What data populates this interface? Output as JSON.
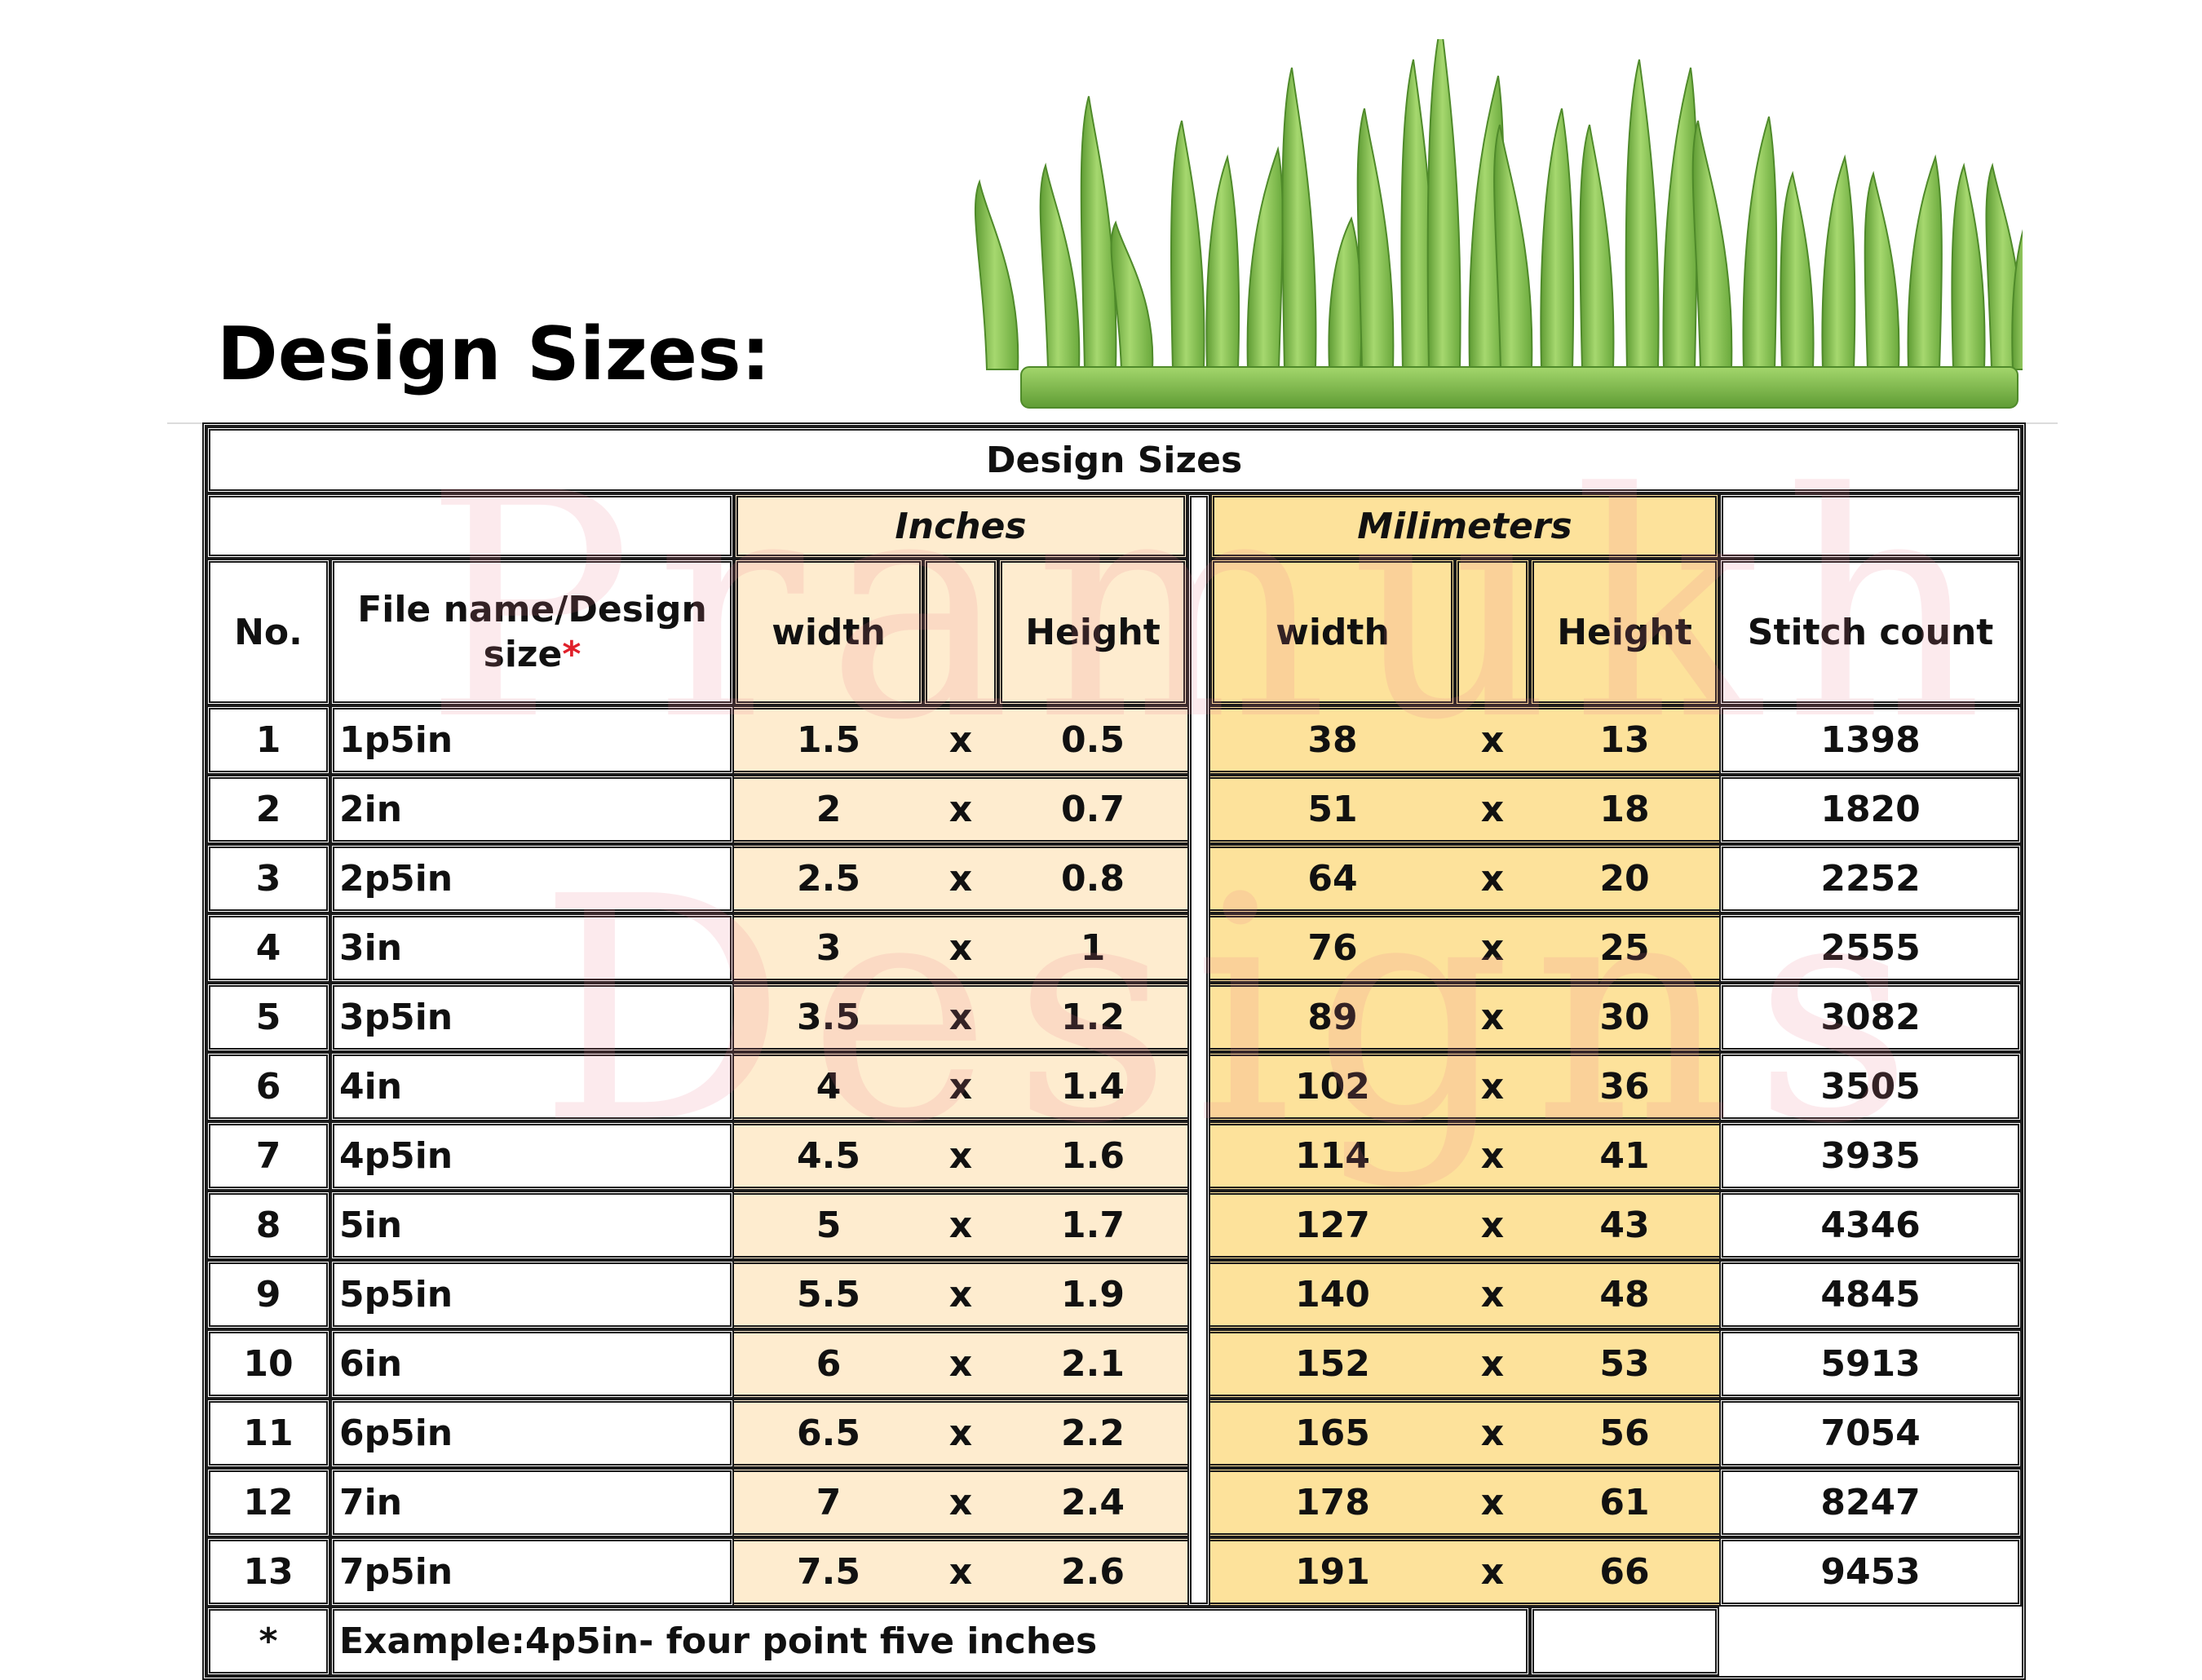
{
  "page": {
    "heading": "Design Sizes:"
  },
  "watermark": {
    "line1": "Pramukh",
    "line2": "Designs"
  },
  "table": {
    "title": "Design Sizes",
    "group_inches": "Inches",
    "group_mm": "Milimeters",
    "headers": {
      "no": "No.",
      "file": "File name/Design size",
      "file_marker": "*",
      "in_width": "width",
      "in_height": "Height",
      "mm_width": "width",
      "mm_height": "Height",
      "stitch": "Stitch count"
    },
    "times": "x",
    "rows": [
      {
        "no": "1",
        "file": "1p5in",
        "in_w": "1.5",
        "in_h": "0.5",
        "mm_w": "38",
        "mm_h": "13",
        "stitch": "1398"
      },
      {
        "no": "2",
        "file": "2in",
        "in_w": "2",
        "in_h": "0.7",
        "mm_w": "51",
        "mm_h": "18",
        "stitch": "1820"
      },
      {
        "no": "3",
        "file": "2p5in",
        "in_w": "2.5",
        "in_h": "0.8",
        "mm_w": "64",
        "mm_h": "20",
        "stitch": "2252"
      },
      {
        "no": "4",
        "file": "3in",
        "in_w": "3",
        "in_h": "1",
        "mm_w": "76",
        "mm_h": "25",
        "stitch": "2555"
      },
      {
        "no": "5",
        "file": "3p5in",
        "in_w": "3.5",
        "in_h": "1.2",
        "mm_w": "89",
        "mm_h": "30",
        "stitch": "3082"
      },
      {
        "no": "6",
        "file": "4in",
        "in_w": "4",
        "in_h": "1.4",
        "mm_w": "102",
        "mm_h": "36",
        "stitch": "3505"
      },
      {
        "no": "7",
        "file": "4p5in",
        "in_w": "4.5",
        "in_h": "1.6",
        "mm_w": "114",
        "mm_h": "41",
        "stitch": "3935"
      },
      {
        "no": "8",
        "file": "5in",
        "in_w": "5",
        "in_h": "1.7",
        "mm_w": "127",
        "mm_h": "43",
        "stitch": "4346"
      },
      {
        "no": "9",
        "file": "5p5in",
        "in_w": "5.5",
        "in_h": "1.9",
        "mm_w": "140",
        "mm_h": "48",
        "stitch": "4845"
      },
      {
        "no": "10",
        "file": "6in",
        "in_w": "6",
        "in_h": "2.1",
        "mm_w": "152",
        "mm_h": "53",
        "stitch": "5913"
      },
      {
        "no": "11",
        "file": "6p5in",
        "in_w": "6.5",
        "in_h": "2.2",
        "mm_w": "165",
        "mm_h": "56",
        "stitch": "7054"
      },
      {
        "no": "12",
        "file": "7in",
        "in_w": "7",
        "in_h": "2.4",
        "mm_w": "178",
        "mm_h": "61",
        "stitch": "8247"
      },
      {
        "no": "13",
        "file": "7p5in",
        "in_w": "7.5",
        "in_h": "2.6",
        "mm_w": "191",
        "mm_h": "66",
        "stitch": "9453"
      }
    ],
    "footnote_marker": "*",
    "footnote": "Example:4p5in- four point five inches"
  },
  "colors": {
    "inches_fill": "#feeccf",
    "mm_fill": "#fde29b",
    "star": "#e0202a",
    "grass_light": "#9fd46a",
    "grass_dark": "#5f9c34",
    "watermark": "#ec7a8c"
  },
  "icons": {
    "illustration": "grass-embroidery-icon"
  }
}
